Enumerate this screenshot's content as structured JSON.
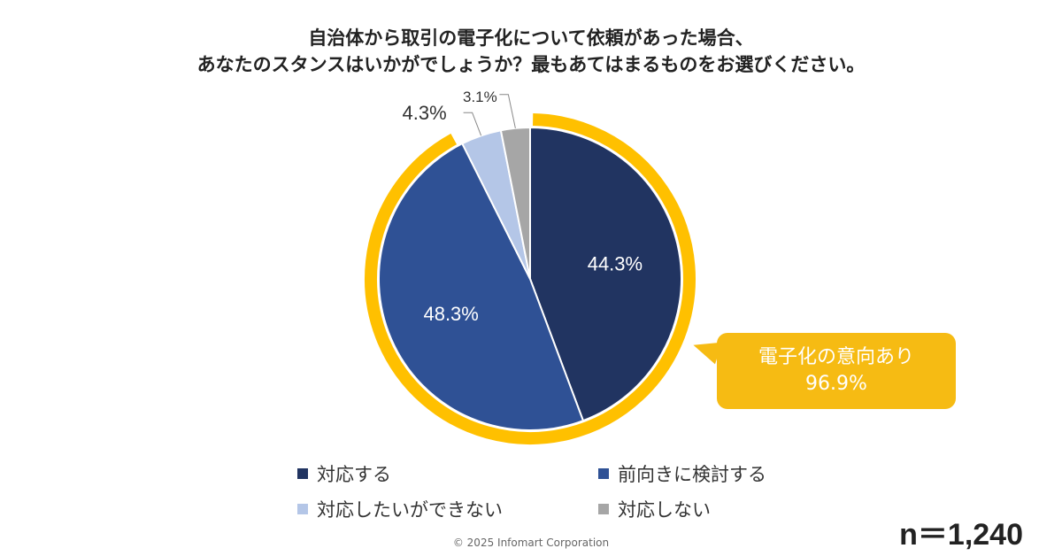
{
  "title": {
    "line1": "自治体から取引の電子化について依頼があった場合、",
    "line2": "あなたのスタンスはいかがでしょうか？最もあてはまるものをお選びください。"
  },
  "chart_data": {
    "type": "pie",
    "slices": [
      {
        "label": "対応する",
        "value": 44.3,
        "display": "44.3%",
        "color": "#213461"
      },
      {
        "label": "前向きに検討する",
        "value": 48.3,
        "display": "48.3%",
        "color": "#2f5195"
      },
      {
        "label": "対応したいができない",
        "value": 4.3,
        "display": "4.3%",
        "color": "#b4c6e7"
      },
      {
        "label": "対応しない",
        "value": 3.1,
        "display": "3.1%",
        "color": "#a6a6a6"
      }
    ],
    "highlight": {
      "line1": "電子化の意向あり",
      "line2": "96.9%",
      "color": "#ffc000"
    },
    "legend_position": "bottom"
  },
  "sample_size": "n＝1,240",
  "copyright": "© 2025 Infomart Corporation"
}
